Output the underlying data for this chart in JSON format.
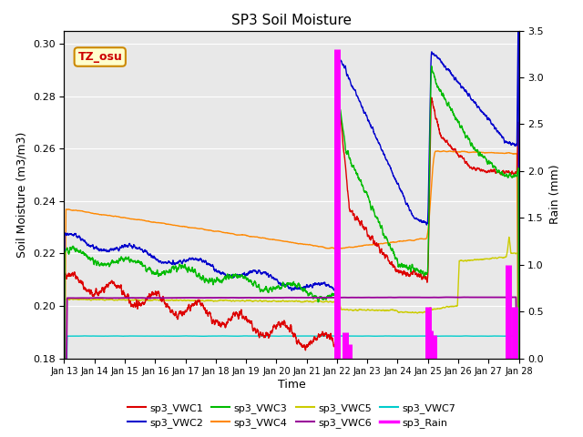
{
  "title": "SP3 Soil Moisture",
  "xlabel": "Time",
  "ylabel_left": "Soil Moisture (m3/m3)",
  "ylabel_right": "Rain (mm)",
  "ylim_left": [
    0.18,
    0.305
  ],
  "ylim_right": [
    0.0,
    3.5
  ],
  "yticks_left": [
    0.18,
    0.2,
    0.22,
    0.24,
    0.26,
    0.28,
    0.3
  ],
  "yticks_right": [
    0.0,
    0.5,
    1.0,
    1.5,
    2.0,
    2.5,
    3.0,
    3.5
  ],
  "xtick_labels": [
    "Jan 13",
    "Jan 14",
    "Jan 15",
    "Jan 16",
    "Jan 17",
    "Jan 18",
    "Jan 19",
    "Jan 20",
    "Jan 21",
    "Jan 22",
    "Jan 23",
    "Jan 24",
    "Jan 25",
    "Jan 26",
    "Jan 27",
    "Jan 28"
  ],
  "colors": {
    "VWC1": "#dd0000",
    "VWC2": "#0000cc",
    "VWC3": "#00bb00",
    "VWC4": "#ff8800",
    "VWC5": "#cccc00",
    "VWC6": "#990099",
    "VWC7": "#00cccc",
    "Rain": "#ff00ff"
  },
  "background_color": "#e8e8e8",
  "annotation_text": "TZ_osu",
  "annotation_color": "#cc0000",
  "legend_labels": [
    "sp3_VWC1",
    "sp3_VWC2",
    "sp3_VWC3",
    "sp3_VWC4",
    "sp3_VWC5",
    "sp3_VWC6",
    "sp3_VWC7",
    "sp3_Rain"
  ]
}
